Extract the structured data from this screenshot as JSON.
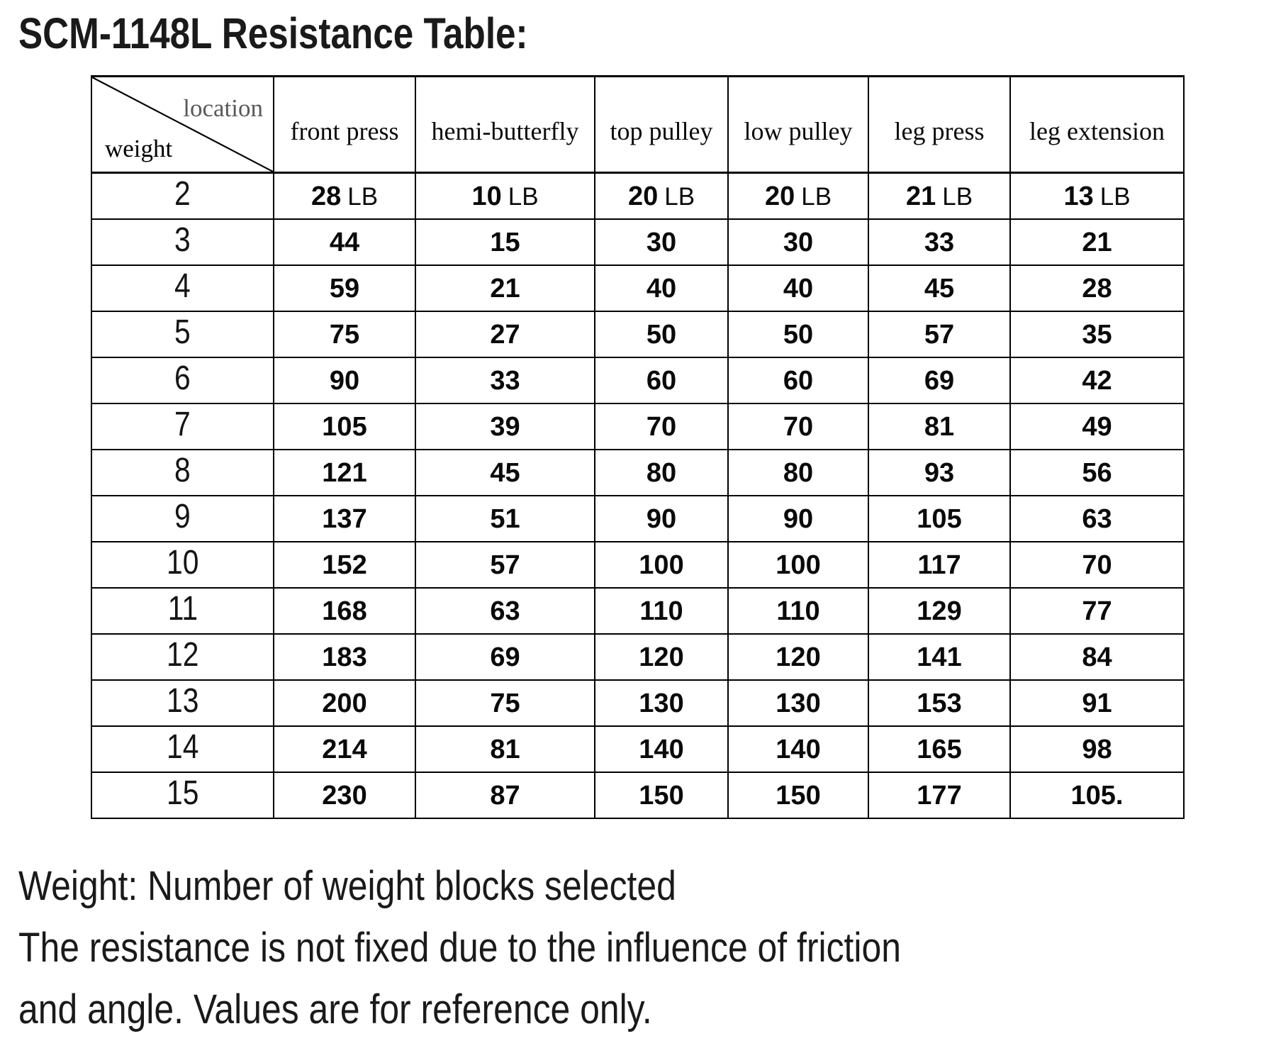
{
  "title": "SCM-1148L Resistance Table:",
  "table": {
    "corner": {
      "top_label": "location",
      "bottom_label": "weight"
    },
    "columns": [
      "front press",
      "hemi-butterfly",
      "top pulley",
      "low pulley",
      "leg press",
      "leg extension"
    ],
    "unit": "LB",
    "rows": [
      {
        "weight": "2",
        "show_unit": true,
        "values": [
          "28",
          "10",
          "20",
          "20",
          "21",
          "13"
        ]
      },
      {
        "weight": "3",
        "show_unit": false,
        "values": [
          "44",
          "15",
          "30",
          "30",
          "33",
          "21"
        ]
      },
      {
        "weight": "4",
        "show_unit": false,
        "values": [
          "59",
          "21",
          "40",
          "40",
          "45",
          "28"
        ]
      },
      {
        "weight": "5",
        "show_unit": false,
        "values": [
          "75",
          "27",
          "50",
          "50",
          "57",
          "35"
        ]
      },
      {
        "weight": "6",
        "show_unit": false,
        "values": [
          "90",
          "33",
          "60",
          "60",
          "69",
          "42"
        ]
      },
      {
        "weight": "7",
        "show_unit": false,
        "values": [
          "105",
          "39",
          "70",
          "70",
          "81",
          "49"
        ]
      },
      {
        "weight": "8",
        "show_unit": false,
        "values": [
          "121",
          "45",
          "80",
          "80",
          "93",
          "56"
        ]
      },
      {
        "weight": "9",
        "show_unit": false,
        "values": [
          "137",
          "51",
          "90",
          "90",
          "105",
          "63"
        ]
      },
      {
        "weight": "10",
        "show_unit": false,
        "values": [
          "152",
          "57",
          "100",
          "100",
          "117",
          "70"
        ]
      },
      {
        "weight": "11",
        "show_unit": false,
        "values": [
          "168",
          "63",
          "110",
          "110",
          "129",
          "77"
        ]
      },
      {
        "weight": "12",
        "show_unit": false,
        "values": [
          "183",
          "69",
          "120",
          "120",
          "141",
          "84"
        ]
      },
      {
        "weight": "13",
        "show_unit": false,
        "values": [
          "200",
          "75",
          "130",
          "130",
          "153",
          "91"
        ]
      },
      {
        "weight": "14",
        "show_unit": false,
        "values": [
          "214",
          "81",
          "140",
          "140",
          "165",
          "98"
        ]
      },
      {
        "weight": "15",
        "show_unit": false,
        "values": [
          "230",
          "87",
          "150",
          "150",
          "177",
          "105."
        ]
      }
    ]
  },
  "footer": {
    "line1": "Weight: Number of weight blocks selected",
    "line2": "The resistance is not fixed due to the influence of friction",
    "line3": "and angle. Values are for reference only."
  }
}
